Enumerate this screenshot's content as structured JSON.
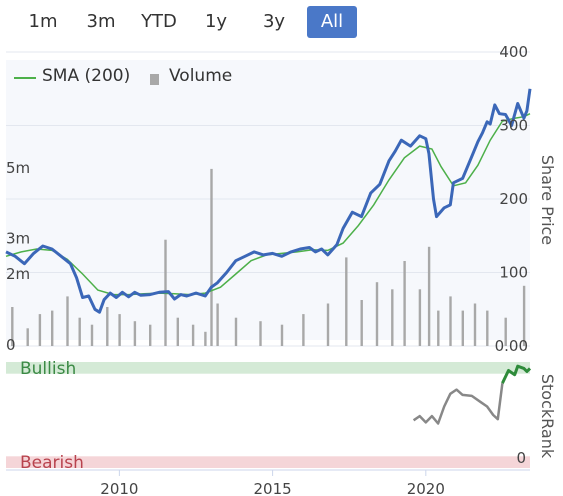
{
  "range_selector": {
    "buttons": [
      {
        "label": "1m",
        "active": false
      },
      {
        "label": "3m",
        "active": false
      },
      {
        "label": "YTD",
        "active": false
      },
      {
        "label": "1y",
        "active": false
      },
      {
        "label": "3y",
        "active": false
      },
      {
        "label": "All",
        "active": true
      }
    ]
  },
  "legend": {
    "sma_label": "SMA (200)",
    "volume_label": "Volume",
    "sma_color": "#4db04a",
    "volume_color": "#a8a8a8"
  },
  "chart_data": [
    {
      "type": "line",
      "title": "",
      "xlabel": "",
      "ylabel": "Share Price",
      "x_ticks": [
        2010,
        2015,
        2020
      ],
      "xlim": [
        2006.3,
        2023.4
      ],
      "price_axis": {
        "ticks": [
          0,
          100,
          200,
          300,
          400
        ],
        "tick_labels": [
          "0.00",
          "100",
          "200",
          "300",
          "400"
        ],
        "ylim": [
          0,
          400
        ]
      },
      "volume_axis": {
        "ticks": [
          0,
          2,
          3,
          5
        ],
        "tick_labels": [
          "0",
          "2m",
          "3m",
          "5m"
        ],
        "unit": "m",
        "ylim": [
          0,
          8.3
        ]
      },
      "grid": true,
      "legend_position": "top-left",
      "series": [
        {
          "name": "",
          "kind": "price",
          "color": "#3b67b8",
          "points": [
            [
              2006.3,
              128
            ],
            [
              2006.6,
              122
            ],
            [
              2006.9,
              112
            ],
            [
              2007.2,
              126
            ],
            [
              2007.5,
              136
            ],
            [
              2007.8,
              132
            ],
            [
              2008.1,
              122
            ],
            [
              2008.4,
              112
            ],
            [
              2008.6,
              93
            ],
            [
              2008.8,
              66
            ],
            [
              2009.0,
              68
            ],
            [
              2009.2,
              50
            ],
            [
              2009.35,
              46
            ],
            [
              2009.5,
              63
            ],
            [
              2009.7,
              72
            ],
            [
              2009.9,
              66
            ],
            [
              2010.1,
              73
            ],
            [
              2010.3,
              67
            ],
            [
              2010.5,
              73
            ],
            [
              2010.7,
              69
            ],
            [
              2011.0,
              70
            ],
            [
              2011.3,
              73
            ],
            [
              2011.6,
              74
            ],
            [
              2011.8,
              64
            ],
            [
              2012.0,
              70
            ],
            [
              2012.2,
              68
            ],
            [
              2012.5,
              72
            ],
            [
              2012.8,
              68
            ],
            [
              2013.0,
              80
            ],
            [
              2013.2,
              86
            ],
            [
              2013.5,
              100
            ],
            [
              2013.8,
              116
            ],
            [
              2014.1,
              122
            ],
            [
              2014.4,
              128
            ],
            [
              2014.7,
              124
            ],
            [
              2015.0,
              126
            ],
            [
              2015.3,
              122
            ],
            [
              2015.6,
              128
            ],
            [
              2015.9,
              132
            ],
            [
              2016.2,
              134
            ],
            [
              2016.4,
              128
            ],
            [
              2016.6,
              132
            ],
            [
              2016.8,
              124
            ],
            [
              2017.1,
              138
            ],
            [
              2017.3,
              160
            ],
            [
              2017.6,
              182
            ],
            [
              2017.9,
              176
            ],
            [
              2018.2,
              208
            ],
            [
              2018.5,
              220
            ],
            [
              2018.8,
              252
            ],
            [
              2019.0,
              265
            ],
            [
              2019.2,
              280
            ],
            [
              2019.5,
              272
            ],
            [
              2019.8,
              286
            ],
            [
              2020.0,
              282
            ],
            [
              2020.1,
              262
            ],
            [
              2020.25,
              200
            ],
            [
              2020.35,
              176
            ],
            [
              2020.6,
              188
            ],
            [
              2020.8,
              192
            ],
            [
              2020.9,
              222
            ],
            [
              2021.2,
              228
            ],
            [
              2021.5,
              258
            ],
            [
              2021.7,
              278
            ],
            [
              2021.85,
              290
            ],
            [
              2022.0,
              305
            ],
            [
              2022.1,
              302
            ],
            [
              2022.25,
              328
            ],
            [
              2022.4,
              316
            ],
            [
              2022.6,
              315
            ],
            [
              2022.8,
              300
            ],
            [
              2023.0,
              330
            ],
            [
              2023.2,
              310
            ],
            [
              2023.3,
              320
            ],
            [
              2023.4,
              350
            ]
          ]
        },
        {
          "name": "SMA (200)",
          "kind": "sma",
          "color": "#4db04a",
          "points": [
            [
              2006.3,
              122
            ],
            [
              2006.8,
              128
            ],
            [
              2007.3,
              132
            ],
            [
              2007.8,
              130
            ],
            [
              2008.3,
              118
            ],
            [
              2008.8,
              98
            ],
            [
              2009.3,
              76
            ],
            [
              2009.8,
              70
            ],
            [
              2010.3,
              70
            ],
            [
              2010.8,
              71
            ],
            [
              2011.3,
              72
            ],
            [
              2011.8,
              71
            ],
            [
              2012.3,
              70
            ],
            [
              2012.8,
              72
            ],
            [
              2013.3,
              80
            ],
            [
              2013.8,
              98
            ],
            [
              2014.3,
              116
            ],
            [
              2014.8,
              124
            ],
            [
              2015.3,
              126
            ],
            [
              2015.8,
              128
            ],
            [
              2016.3,
              131
            ],
            [
              2016.8,
              130
            ],
            [
              2017.3,
              140
            ],
            [
              2017.8,
              164
            ],
            [
              2018.3,
              192
            ],
            [
              2018.8,
              226
            ],
            [
              2019.3,
              256
            ],
            [
              2019.8,
              272
            ],
            [
              2020.2,
              268
            ],
            [
              2020.5,
              244
            ],
            [
              2020.9,
              218
            ],
            [
              2021.3,
              222
            ],
            [
              2021.7,
              246
            ],
            [
              2022.1,
              280
            ],
            [
              2022.5,
              306
            ],
            [
              2022.9,
              310
            ],
            [
              2023.2,
              312
            ],
            [
              2023.4,
              316
            ]
          ]
        }
      ],
      "volume_bars": [
        [
          2006.5,
          1.1
        ],
        [
          2007.0,
          0.5
        ],
        [
          2007.4,
          0.9
        ],
        [
          2007.8,
          1.0
        ],
        [
          2008.3,
          1.4
        ],
        [
          2008.7,
          0.8
        ],
        [
          2009.1,
          0.6
        ],
        [
          2009.6,
          1.1
        ],
        [
          2010.0,
          0.9
        ],
        [
          2010.5,
          0.7
        ],
        [
          2011.0,
          0.6
        ],
        [
          2011.5,
          3.0
        ],
        [
          2011.9,
          0.8
        ],
        [
          2012.4,
          0.6
        ],
        [
          2012.8,
          0.4
        ],
        [
          2013.0,
          5.0
        ],
        [
          2013.2,
          1.2
        ],
        [
          2013.8,
          0.8
        ],
        [
          2014.6,
          0.7
        ],
        [
          2015.3,
          0.6
        ],
        [
          2016.0,
          0.9
        ],
        [
          2016.8,
          1.2
        ],
        [
          2017.4,
          2.5
        ],
        [
          2017.9,
          1.3
        ],
        [
          2018.4,
          1.8
        ],
        [
          2018.9,
          1.6
        ],
        [
          2019.3,
          2.4
        ],
        [
          2019.8,
          1.6
        ],
        [
          2020.1,
          2.8
        ],
        [
          2020.4,
          1.0
        ],
        [
          2020.8,
          1.4
        ],
        [
          2021.2,
          1.0
        ],
        [
          2021.6,
          1.2
        ],
        [
          2022.0,
          1.0
        ],
        [
          2022.6,
          0.8
        ],
        [
          2023.2,
          1.7
        ]
      ]
    },
    {
      "type": "line",
      "title": "",
      "ylabel": "StockRank",
      "ylim": [
        0,
        100
      ],
      "y_ticks": [
        0
      ],
      "tick_labels": [
        "0"
      ],
      "zones": [
        {
          "label": "Bullish",
          "from": 89,
          "to": 100,
          "color": "#d4ead6",
          "text_color": "#3b8a45"
        },
        {
          "label": "Bearish",
          "from": 0,
          "to": 11,
          "color": "#f5d5d8",
          "text_color": "#b8434e"
        }
      ],
      "series": [
        {
          "name": "",
          "kind": "neutral",
          "color": "#888888",
          "points": [
            [
              2019.6,
              45
            ],
            [
              2019.8,
              49
            ],
            [
              2020.0,
              43
            ],
            [
              2020.2,
              49
            ],
            [
              2020.4,
              42
            ],
            [
              2020.6,
              58
            ],
            [
              2020.8,
              70
            ],
            [
              2021.0,
              74
            ],
            [
              2021.2,
              69
            ],
            [
              2021.5,
              68
            ],
            [
              2021.8,
              62
            ],
            [
              2022.0,
              58
            ],
            [
              2022.2,
              50
            ],
            [
              2022.35,
              46
            ],
            [
              2022.5,
              80
            ]
          ]
        },
        {
          "name": "",
          "kind": "bullish",
          "color": "#2e8b3a",
          "points": [
            [
              2022.5,
              80
            ],
            [
              2022.7,
              92
            ],
            [
              2022.9,
              88
            ],
            [
              2023.0,
              96
            ],
            [
              2023.2,
              94
            ],
            [
              2023.3,
              91
            ],
            [
              2023.4,
              94
            ]
          ]
        }
      ]
    }
  ]
}
